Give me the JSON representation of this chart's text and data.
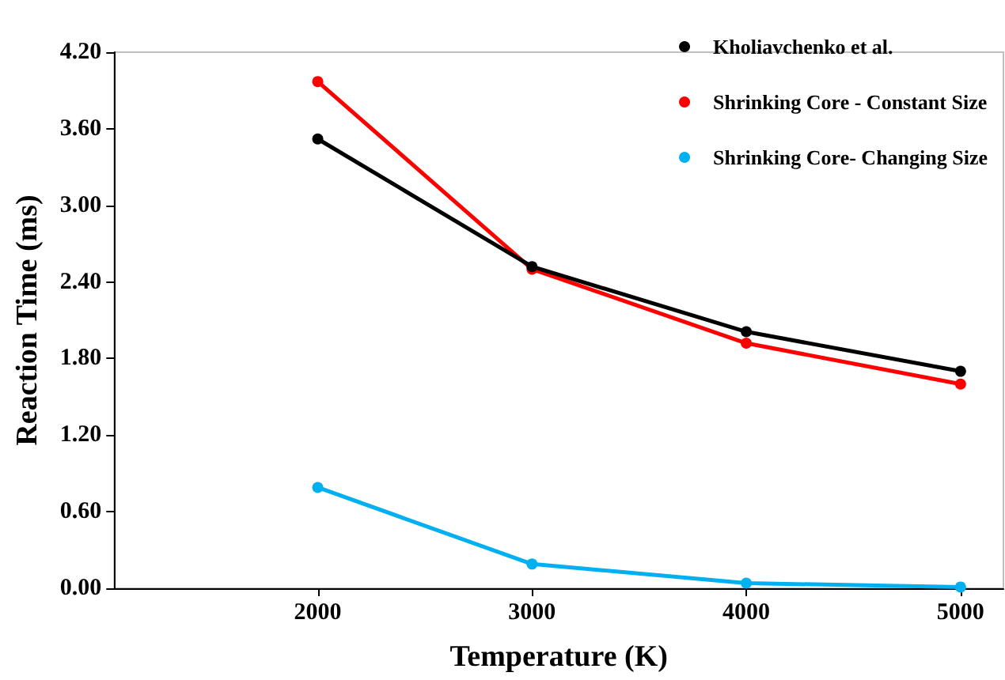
{
  "chart_data": {
    "type": "line",
    "xlabel": "Temperature (K)",
    "ylabel": "Reaction Time (ms)",
    "x": [
      2000,
      3000,
      4000,
      5000
    ],
    "xlim": [
      1050,
      5200
    ],
    "xticks": [
      2000,
      3000,
      4000,
      5000
    ],
    "ylim": [
      0,
      4.2
    ],
    "yticks": [
      {
        "value": 0,
        "label": "0.00"
      },
      {
        "value": 0.6,
        "label": "0.60"
      },
      {
        "value": 1.2,
        "label": "1.20"
      },
      {
        "value": 1.8,
        "label": "1.80"
      },
      {
        "value": 2.4,
        "label": "2.40"
      },
      {
        "value": 3.0,
        "label": "3.00"
      },
      {
        "value": 3.6,
        "label": "3.60"
      },
      {
        "value": 4.2,
        "label": "4.20"
      }
    ],
    "series": [
      {
        "name": "Kholiavchenko et al.",
        "color": "#000000",
        "values": [
          3.52,
          2.52,
          2.01,
          1.7
        ]
      },
      {
        "name": "Shrinking Core - Constant Size",
        "color": "#ff0000",
        "values": [
          3.97,
          2.5,
          1.92,
          1.6
        ]
      },
      {
        "name": "Shrinking Core- Changing Size",
        "color": "#00b0f0",
        "values": [
          0.79,
          0.19,
          0.04,
          0.01
        ]
      }
    ],
    "grid": false,
    "legend": "top right",
    "marker": "circle",
    "line_style": "solid"
  }
}
